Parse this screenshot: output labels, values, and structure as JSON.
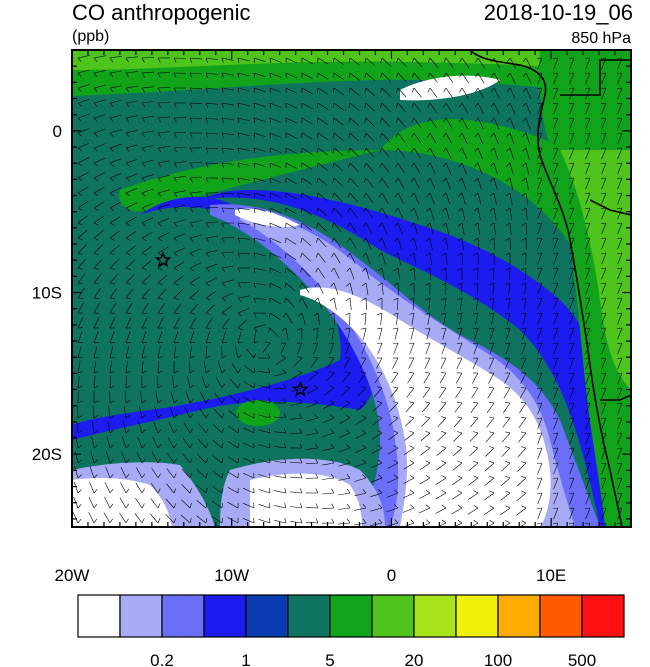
{
  "header": {
    "title": "CO anthropogenic",
    "units": "(ppb)",
    "datetime": "2018-10-19_06",
    "level": "850 hPa"
  },
  "axes": {
    "lon_ticks": [
      {
        "value": -20,
        "label": "20W"
      },
      {
        "value": -10,
        "label": "10W"
      },
      {
        "value": 0,
        "label": "0"
      },
      {
        "value": 10,
        "label": "10E"
      }
    ],
    "lat_ticks": [
      {
        "value": 0,
        "label": "0"
      },
      {
        "value": -10,
        "label": "10S"
      },
      {
        "value": -20,
        "label": "20S"
      }
    ],
    "lon_range": [
      -20,
      15
    ],
    "lat_range": [
      -24.5,
      5
    ]
  },
  "markers": [
    {
      "name": "star-marker",
      "lon": -14.3,
      "lat": -8.0
    },
    {
      "name": "star-marker",
      "lon": -5.7,
      "lat": -16.0
    }
  ],
  "colorbar": {
    "colors": [
      "#ffffff",
      "#a7aaf5",
      "#6b6ef7",
      "#1c1cf0",
      "#0a3bb0",
      "#0e7460",
      "#11a31a",
      "#4ec41c",
      "#a9e41b",
      "#f0f00a",
      "#ffac00",
      "#ff5a00",
      "#ff1111"
    ],
    "labels": [
      {
        "after_bin": 2,
        "text": "0.2"
      },
      {
        "after_bin": 4,
        "text": "1"
      },
      {
        "after_bin": 6,
        "text": "5"
      },
      {
        "after_bin": 8,
        "text": "20"
      },
      {
        "after_bin": 10,
        "text": "100"
      },
      {
        "after_bin": 12,
        "text": "500"
      }
    ]
  }
}
